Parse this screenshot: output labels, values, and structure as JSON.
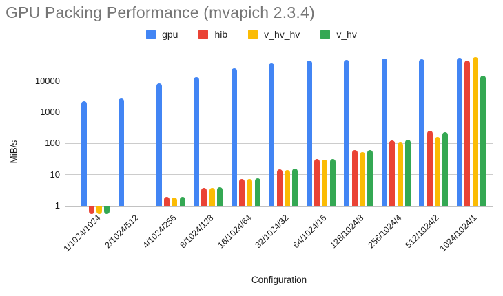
{
  "title": "GPU Packing Performance (mvapich 2.3.4)",
  "axes": {
    "x_title": "Configuration",
    "y_title": "MiB/s"
  },
  "chart_data": {
    "type": "bar",
    "title": "GPU Packing Performance (mvapich 2.3.4)",
    "xlabel": "Configuration",
    "ylabel": "MiB/s",
    "y_scale": "log",
    "y_ticks": [
      1,
      10,
      100,
      1000,
      10000
    ],
    "ylim": [
      1,
      70000
    ],
    "grid": true,
    "legend_position": "top",
    "categories": [
      "1/1024/1024",
      "2/1024/512",
      "4/1024/256",
      "8/1024/128",
      "16/1024/64",
      "32/1024/32",
      "64/1024/16",
      "128/1024/8",
      "256/1024/4",
      "512/1024/2",
      "1024/1024/1"
    ],
    "series": [
      {
        "name": "gpu",
        "color": "#4285F4",
        "values": [
          2250,
          2750,
          8500,
          13000,
          26000,
          37000,
          46000,
          48000,
          52000,
          50000,
          55000
        ]
      },
      {
        "name": "hib",
        "color": "#EA4335",
        "values": [
          0.55,
          null,
          1.9,
          3.8,
          7.4,
          14.8,
          32,
          60,
          125,
          250,
          45000
        ]
      },
      {
        "name": "v_hv_hv",
        "color": "#FBBC04",
        "values": [
          0.55,
          null,
          1.8,
          3.7,
          7.2,
          13.7,
          30,
          52,
          105,
          160,
          57000
        ]
      },
      {
        "name": "v_hv",
        "color": "#34A853",
        "values": [
          0.55,
          null,
          1.9,
          3.9,
          7.7,
          15.2,
          32,
          60,
          130,
          230,
          14500
        ]
      }
    ]
  }
}
